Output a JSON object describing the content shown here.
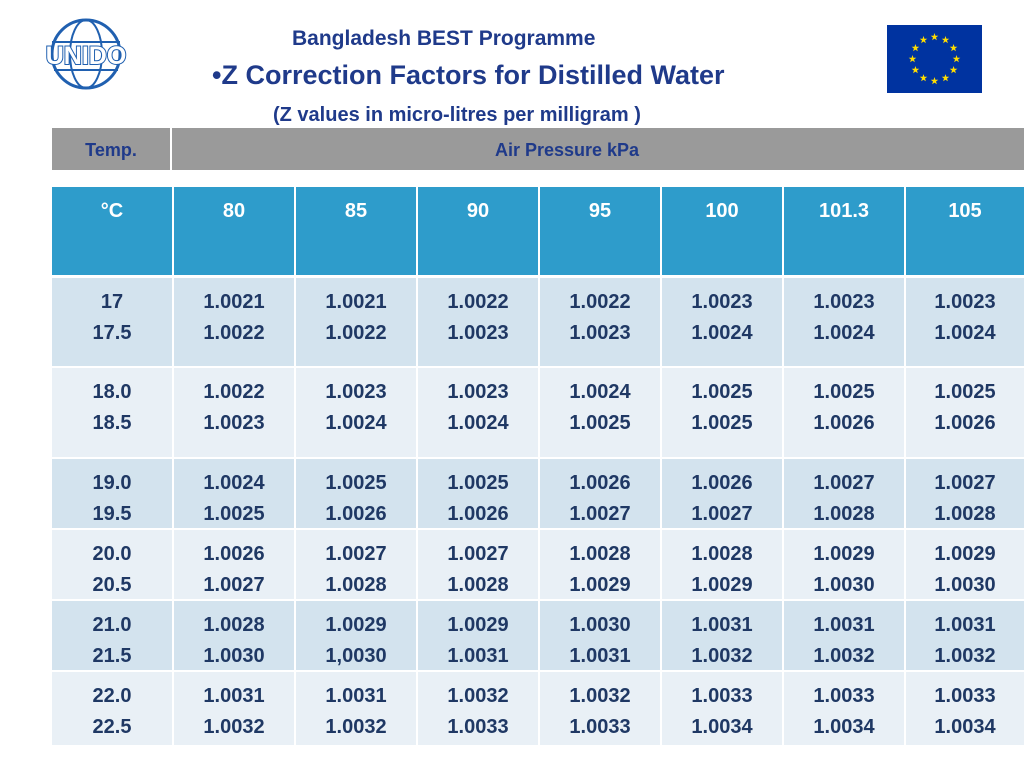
{
  "header": {
    "programme": "Bangladesh BEST Programme",
    "title": "•Z Correction Factors for Distilled Water",
    "subtitle": "(Z values in micro-litres  per milligram )",
    "logo_text": "UNIDO"
  },
  "bar": {
    "left": "Temp.",
    "right": "Air Pressure  kPa"
  },
  "table": {
    "header": [
      "°C",
      "80",
      "85",
      "90",
      "95",
      "100",
      "101.3",
      "105"
    ],
    "rows": [
      [
        [
          "17",
          "17.5"
        ],
        [
          "1.0021",
          "1.0022"
        ],
        [
          "1.0021",
          "1.0022"
        ],
        [
          "1.0022",
          "1.0023"
        ],
        [
          "1.0022",
          "1.0023"
        ],
        [
          "1.0023",
          "1.0024"
        ],
        [
          "1.0023",
          "1.0024"
        ],
        [
          "1.0023",
          "1.0024"
        ]
      ],
      [
        [
          "18.0",
          "18.5"
        ],
        [
          "1.0022",
          "1.0023"
        ],
        [
          "1.0023",
          "1.0024"
        ],
        [
          "1.0023",
          "1.0024"
        ],
        [
          "1.0024",
          "1.0025"
        ],
        [
          "1.0025",
          "1.0025"
        ],
        [
          "1.0025",
          "1.0026"
        ],
        [
          "1.0025",
          "1.0026"
        ]
      ],
      [
        [
          "19.0",
          "19.5"
        ],
        [
          "1.0024",
          "1.0025"
        ],
        [
          "1.0025",
          "1.0026"
        ],
        [
          "1.0025",
          "1.0026"
        ],
        [
          "1.0026",
          "1.0027"
        ],
        [
          "1.0026",
          "1.0027"
        ],
        [
          "1.0027",
          "1.0028"
        ],
        [
          "1.0027",
          "1.0028"
        ]
      ],
      [
        [
          "20.0",
          "20.5"
        ],
        [
          "1.0026",
          "1.0027"
        ],
        [
          "1.0027",
          "1.0028"
        ],
        [
          "1.0027",
          "1.0028"
        ],
        [
          "1.0028",
          "1.0029"
        ],
        [
          "1.0028",
          "1.0029"
        ],
        [
          "1.0029",
          "1.0030"
        ],
        [
          "1.0029",
          "1.0030"
        ]
      ],
      [
        [
          "21.0",
          "21.5"
        ],
        [
          "1.0028",
          "1.0030"
        ],
        [
          "1.0029",
          "1,0030"
        ],
        [
          "1.0029",
          "1.0031"
        ],
        [
          "1.0030",
          "1.0031"
        ],
        [
          "1.0031",
          "1.0032"
        ],
        [
          "1.0031",
          "1.0032"
        ],
        [
          "1.0031",
          "1.0032"
        ]
      ],
      [
        [
          "22.0",
          "22.5"
        ],
        [
          "1.0031",
          "1.0032"
        ],
        [
          "1.0031",
          "1.0032"
        ],
        [
          "1.0032",
          "1.0033"
        ],
        [
          "1.0032",
          "1.0033"
        ],
        [
          "1.0033",
          "1.0034"
        ],
        [
          "1.0033",
          "1.0034"
        ],
        [
          "1.0033",
          "1.0034"
        ]
      ]
    ]
  }
}
